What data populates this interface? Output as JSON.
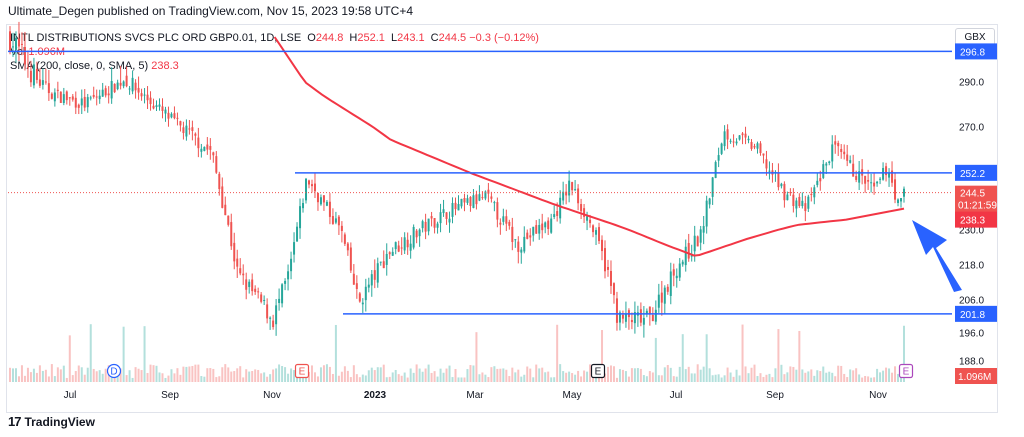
{
  "header": "Ultimate_Degen published on TradingView.com, Nov 15, 2023 19:58 UTC+4",
  "legend": {
    "symbol": "INTL DISTRIBUTIONS SVCS PLC ORD GBP0.01, 1D, LSE",
    "o_label": "O",
    "o": "244.8",
    "h_label": "H",
    "h": "252.1",
    "l_label": "L",
    "l": "243.1",
    "c_label": "C",
    "c": "244.5",
    "chg": "−0.3 (−0.12%)",
    "vol_label": "Vol",
    "vol": "1.096M",
    "sma_label": "SMA (200, close, 0, SMA, 5)",
    "sma": "238.3"
  },
  "currency": "GBX",
  "footer_logo": "TradingView",
  "colors": {
    "up": "#26a69a",
    "down": "#ef5350",
    "sma": "#f23645",
    "hline": "#2962ff",
    "arrow": "#2962ff",
    "axis_text": "#131722"
  },
  "chart_data": {
    "type": "candlestick",
    "y_axis_ticks": [
      "290.0",
      "270.0",
      "230.0",
      "218.0",
      "206.0",
      "196.0",
      "188.0"
    ],
    "y_axis_tick_values": [
      290,
      270,
      230,
      218,
      206,
      196,
      188
    ],
    "x_axis_ticks": [
      "Jul",
      "Sep",
      "Nov",
      "2023",
      "Mar",
      "May",
      "Jul",
      "Sep",
      "Nov"
    ],
    "ylim": [
      182,
      305
    ],
    "horizontal_lines": [
      {
        "value": 296.8,
        "label": "296.8"
      },
      {
        "value": 252.2,
        "label": "252.2"
      },
      {
        "value": 201.8,
        "label": "201.8"
      }
    ],
    "price_labels": {
      "last_price": "244.5",
      "countdown": "01:21:59",
      "sma_value": "238.3",
      "volume": "1.096M"
    },
    "event_markers": [
      "D",
      "E",
      "E",
      "E"
    ],
    "approx_close_path": [
      {
        "date": "2022-05-10",
        "close": 300
      },
      {
        "date": "2022-06-05",
        "close": 285
      },
      {
        "date": "2022-06-25",
        "close": 280
      },
      {
        "date": "2022-07-20",
        "close": 291
      },
      {
        "date": "2022-08-20",
        "close": 272
      },
      {
        "date": "2022-09-12",
        "close": 260
      },
      {
        "date": "2022-09-28",
        "close": 215
      },
      {
        "date": "2022-10-20",
        "close": 200
      },
      {
        "date": "2022-10-30",
        "close": 215
      },
      {
        "date": "2022-11-10",
        "close": 250
      },
      {
        "date": "2022-12-01",
        "close": 230
      },
      {
        "date": "2022-12-12",
        "close": 205
      },
      {
        "date": "2022-12-30",
        "close": 222
      },
      {
        "date": "2023-02-05",
        "close": 237
      },
      {
        "date": "2023-03-01",
        "close": 243
      },
      {
        "date": "2023-03-20",
        "close": 225
      },
      {
        "date": "2023-04-10",
        "close": 233
      },
      {
        "date": "2023-04-22",
        "close": 248
      },
      {
        "date": "2023-05-05",
        "close": 232
      },
      {
        "date": "2023-05-14",
        "close": 218
      },
      {
        "date": "2023-05-22",
        "close": 200
      },
      {
        "date": "2023-06-10",
        "close": 200
      },
      {
        "date": "2023-06-28",
        "close": 218
      },
      {
        "date": "2023-07-12",
        "close": 228
      },
      {
        "date": "2023-07-26",
        "close": 268
      },
      {
        "date": "2023-08-15",
        "close": 262
      },
      {
        "date": "2023-09-01",
        "close": 245
      },
      {
        "date": "2023-09-15",
        "close": 238
      },
      {
        "date": "2023-10-02",
        "close": 262
      },
      {
        "date": "2023-10-16",
        "close": 252
      },
      {
        "date": "2023-10-28",
        "close": 245
      },
      {
        "date": "2023-11-05",
        "close": 255
      },
      {
        "date": "2023-11-12",
        "close": 238
      },
      {
        "date": "2023-11-15",
        "close": 244.5
      }
    ],
    "sma_200_path": [
      {
        "date": "2022-10-21",
        "close": 300
      },
      {
        "date": "2022-11-20",
        "close": 284
      },
      {
        "date": "2023-01-01",
        "close": 265
      },
      {
        "date": "2023-02-20",
        "close": 252
      },
      {
        "date": "2023-04-12",
        "close": 240
      },
      {
        "date": "2023-05-20",
        "close": 232
      },
      {
        "date": "2023-06-20",
        "close": 225
      },
      {
        "date": "2023-07-09",
        "close": 221
      },
      {
        "date": "2023-08-10",
        "close": 227
      },
      {
        "date": "2023-09-10",
        "close": 232
      },
      {
        "date": "2023-10-10",
        "close": 234
      },
      {
        "date": "2023-11-15",
        "close": 238.3
      }
    ]
  }
}
